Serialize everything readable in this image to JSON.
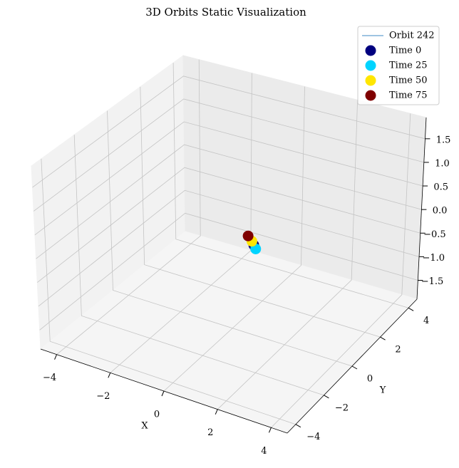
{
  "chart_data": {
    "type": "scatter3d",
    "title": "3D Orbits Static Visualization",
    "xlabel": "X",
    "ylabel": "Y",
    "xlim": [
      -4.6,
      4.6
    ],
    "ylim": [
      -4.6,
      4.6
    ],
    "zlim": [
      -1.9,
      1.95
    ],
    "xticks": [
      {
        "value": -4,
        "label": "−4"
      },
      {
        "value": -2,
        "label": "−2"
      },
      0,
      2,
      4
    ],
    "yticks": [
      {
        "value": -4,
        "label": "−4"
      },
      {
        "value": -2,
        "label": "−2"
      },
      0,
      2,
      4
    ],
    "zticks": [
      {
        "value": -1.5,
        "label": "−1.5"
      },
      {
        "value": -1.0,
        "label": "−1.0"
      },
      {
        "value": -0.5,
        "label": "−0.5"
      },
      {
        "value": 0,
        "label": "0.0"
      },
      0.5,
      {
        "value": 1.0,
        "label": "1.0"
      },
      1.5
    ],
    "grid": true,
    "legend": "upper right",
    "series": [
      {
        "name": "Orbit 242",
        "kind": "line",
        "color": "#7fb1d8",
        "x": [
          0.4,
          0.6,
          0.8,
          0.7
        ],
        "y": [
          0.3,
          0.2,
          0.1,
          0.15
        ],
        "z": [
          0.05,
          0,
          -0.1,
          -0.05
        ]
      },
      {
        "name": "Time 0",
        "kind": "point",
        "color": "#00007f",
        "x": 0.7,
        "y": 0.15,
        "z": -0.05
      },
      {
        "name": "Time 25",
        "kind": "point",
        "color": "#00d4ff",
        "x": 0.8,
        "y": 0.1,
        "z": -0.1
      },
      {
        "name": "Time 50",
        "kind": "point",
        "color": "#ffe600",
        "x": 0.6,
        "y": 0.2,
        "z": 0
      },
      {
        "name": "Time 75",
        "kind": "point",
        "color": "#7f0000",
        "x": 0.4,
        "y": 0.3,
        "z": 0.05
      }
    ]
  }
}
